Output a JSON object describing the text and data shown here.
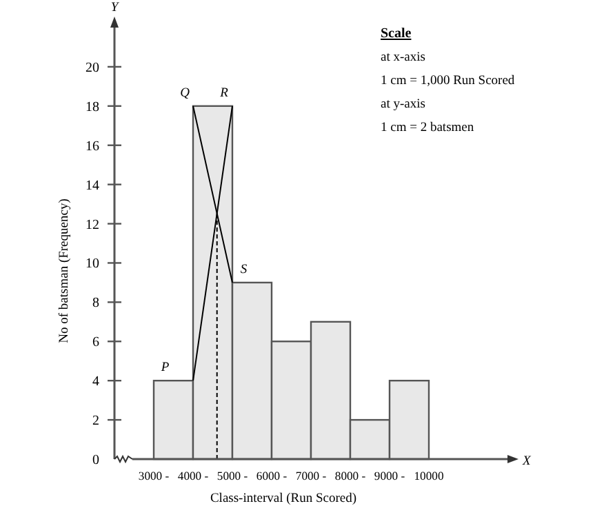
{
  "chart_data": {
    "type": "histogram",
    "xlabel": "Class-interval (Run Scored)",
    "ylabel": "No of batsman (Frequency)",
    "bins": [
      3000,
      4000,
      5000,
      6000,
      7000,
      8000,
      9000,
      10000
    ],
    "values": [
      4,
      18,
      9,
      6,
      7,
      2,
      4
    ],
    "color": "#e8e8e8",
    "xlim": [
      2000,
      12000
    ],
    "ylim": [
      0,
      22
    ],
    "xticks": [
      {
        "value": 3000,
        "label": "3000 -"
      },
      {
        "value": 4000,
        "label": "4000 -"
      },
      {
        "value": 5000,
        "label": "5000 -"
      },
      {
        "value": 6000,
        "label": "6000 -"
      },
      {
        "value": 7000,
        "label": "7000 -"
      },
      {
        "value": 8000,
        "label": "8000 -"
      },
      {
        "value": 9000,
        "label": "9000 -"
      },
      {
        "value": 10000,
        "label": "10000"
      }
    ],
    "yticks": [
      0,
      2,
      4,
      6,
      8,
      10,
      12,
      14,
      16,
      18,
      20
    ],
    "series": [
      {
        "type": "line",
        "color": "#000000",
        "x": [
          4000,
          5000
        ],
        "values": [
          4,
          18
        ],
        "line_style": "solid"
      },
      {
        "type": "line",
        "color": "#000000",
        "x": [
          4000,
          5000
        ],
        "values": [
          18,
          9
        ],
        "line_style": "solid"
      },
      {
        "type": "line",
        "color": "#000000",
        "x": [
          4609,
          4609
        ],
        "values": [
          0,
          12.5
        ],
        "line_style": "dashed"
      }
    ],
    "annotations": [
      "Scale",
      "at x-axis",
      "1 cm = 1,000 Run Scored",
      "at y-axis",
      "1 cm = 2 batsmen",
      {
        "text": "P",
        "x": 3500,
        "y": 4
      },
      {
        "text": "Q",
        "x": 4000,
        "y": 18
      },
      {
        "text": "R",
        "x": 5000,
        "y": 18
      },
      {
        "text": "S",
        "x": 5500,
        "y": 9
      },
      "X",
      "Y"
    ]
  }
}
